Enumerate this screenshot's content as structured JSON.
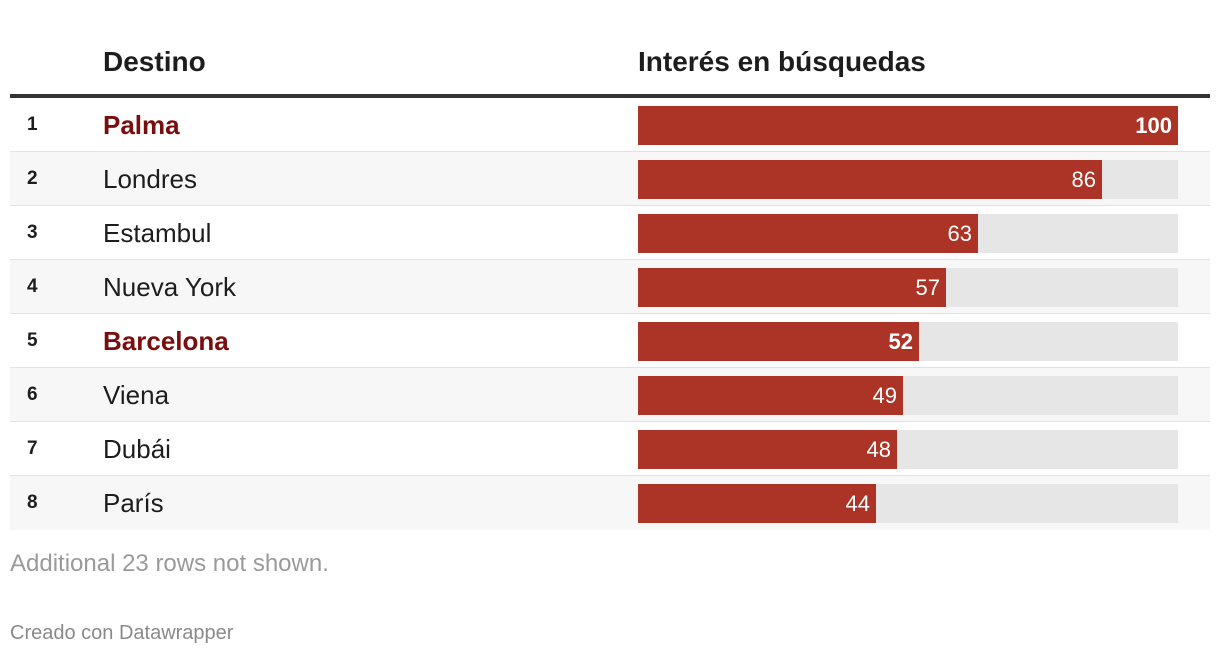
{
  "chart_data": {
    "type": "table",
    "columns": [
      "Destino",
      "Interés en búsquedas"
    ],
    "max_value": 100,
    "rows": [
      {
        "rank": "1",
        "destino": "Palma",
        "value": 100,
        "highlight": true
      },
      {
        "rank": "2",
        "destino": "Londres",
        "value": 86,
        "highlight": false
      },
      {
        "rank": "3",
        "destino": "Estambul",
        "value": 63,
        "highlight": false
      },
      {
        "rank": "4",
        "destino": "Nueva York",
        "value": 57,
        "highlight": false
      },
      {
        "rank": "5",
        "destino": "Barcelona",
        "value": 52,
        "highlight": true
      },
      {
        "rank": "6",
        "destino": "Viena",
        "value": 49,
        "highlight": false
      },
      {
        "rank": "7",
        "destino": "Dubái",
        "value": 48,
        "highlight": false
      },
      {
        "rank": "8",
        "destino": "París",
        "value": 44,
        "highlight": false
      }
    ],
    "note": "Additional 23 rows not shown."
  },
  "footer": {
    "credit": "Creado con Datawrapper"
  },
  "colors": {
    "bar": "#ab3427",
    "track": "#e6e6e6",
    "highlight_text": "#7a0d0d"
  }
}
